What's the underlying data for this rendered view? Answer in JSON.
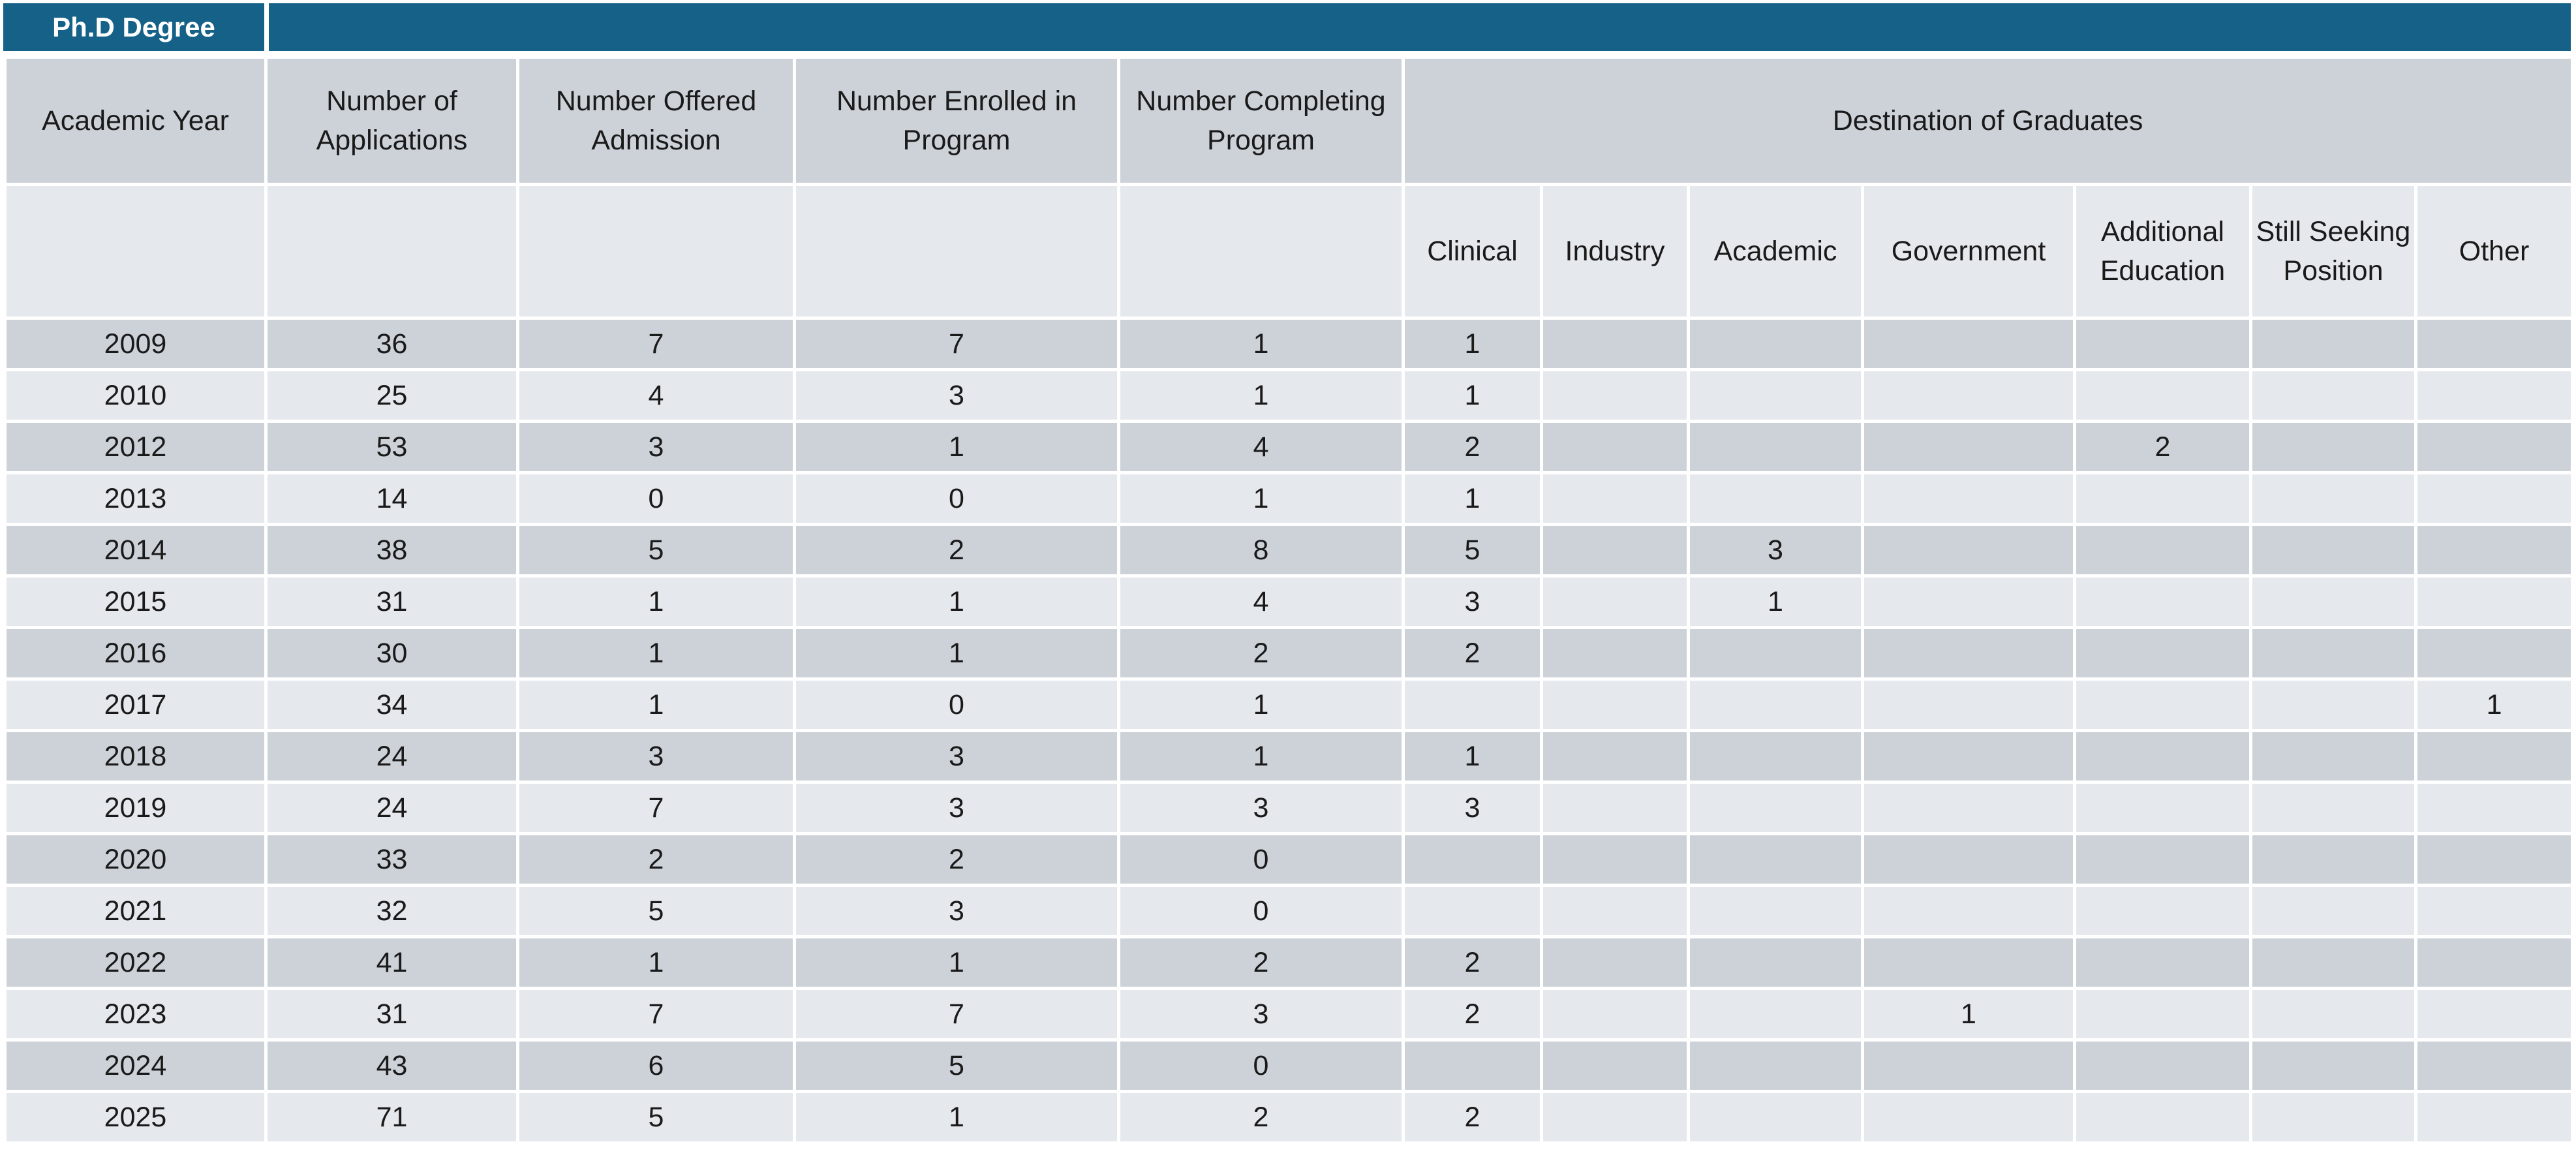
{
  "title": "Ph.D Degree",
  "headers": {
    "academic_year": "Academic Year",
    "applications": "Number of Applications",
    "offered": "Number Offered Admission",
    "enrolled": "Number Enrolled in Program",
    "completing": "Number Completing Program",
    "destination": "Destination of Graduates",
    "clinical": "Clinical",
    "industry": "Industry",
    "academic": "Academic",
    "government": "Government",
    "additional_education": "Additional Education",
    "still_seeking": "Still Seeking Position",
    "other": "Other"
  },
  "rows": [
    {
      "year": "2009",
      "applications": "36",
      "offered": "7",
      "enrolled": "7",
      "completing": "1",
      "clinical": "1",
      "industry": "",
      "academic": "",
      "government": "",
      "additional": "",
      "seeking": "",
      "other": ""
    },
    {
      "year": "2010",
      "applications": "25",
      "offered": "4",
      "enrolled": "3",
      "completing": "1",
      "clinical": "1",
      "industry": "",
      "academic": "",
      "government": "",
      "additional": "",
      "seeking": "",
      "other": ""
    },
    {
      "year": "2012",
      "applications": "53",
      "offered": "3",
      "enrolled": "1",
      "completing": "4",
      "clinical": "2",
      "industry": "",
      "academic": "",
      "government": "",
      "additional": "2",
      "seeking": "",
      "other": ""
    },
    {
      "year": "2013",
      "applications": "14",
      "offered": "0",
      "enrolled": "0",
      "completing": "1",
      "clinical": "1",
      "industry": "",
      "academic": "",
      "government": "",
      "additional": "",
      "seeking": "",
      "other": ""
    },
    {
      "year": "2014",
      "applications": "38",
      "offered": "5",
      "enrolled": "2",
      "completing": "8",
      "clinical": "5",
      "industry": "",
      "academic": "3",
      "government": "",
      "additional": "",
      "seeking": "",
      "other": ""
    },
    {
      "year": "2015",
      "applications": "31",
      "offered": "1",
      "enrolled": "1",
      "completing": "4",
      "clinical": "3",
      "industry": "",
      "academic": "1",
      "government": "",
      "additional": "",
      "seeking": "",
      "other": ""
    },
    {
      "year": "2016",
      "applications": "30",
      "offered": "1",
      "enrolled": "1",
      "completing": "2",
      "clinical": "2",
      "industry": "",
      "academic": "",
      "government": "",
      "additional": "",
      "seeking": "",
      "other": ""
    },
    {
      "year": "2017",
      "applications": "34",
      "offered": "1",
      "enrolled": "0",
      "completing": "1",
      "clinical": "",
      "industry": "",
      "academic": "",
      "government": "",
      "additional": "",
      "seeking": "",
      "other": "1"
    },
    {
      "year": "2018",
      "applications": "24",
      "offered": "3",
      "enrolled": "3",
      "completing": "1",
      "clinical": "1",
      "industry": "",
      "academic": "",
      "government": "",
      "additional": "",
      "seeking": "",
      "other": ""
    },
    {
      "year": "2019",
      "applications": "24",
      "offered": "7",
      "enrolled": "3",
      "completing": "3",
      "clinical": "3",
      "industry": "",
      "academic": "",
      "government": "",
      "additional": "",
      "seeking": "",
      "other": ""
    },
    {
      "year": "2020",
      "applications": "33",
      "offered": "2",
      "enrolled": "2",
      "completing": "0",
      "clinical": "",
      "industry": "",
      "academic": "",
      "government": "",
      "additional": "",
      "seeking": "",
      "other": ""
    },
    {
      "year": "2021",
      "applications": "32",
      "offered": "5",
      "enrolled": "3",
      "completing": "0",
      "clinical": "",
      "industry": "",
      "academic": "",
      "government": "",
      "additional": "",
      "seeking": "",
      "other": ""
    },
    {
      "year": "2022",
      "applications": "41",
      "offered": "1",
      "enrolled": "1",
      "completing": "2",
      "clinical": "2",
      "industry": "",
      "academic": "",
      "government": "",
      "additional": "",
      "seeking": "",
      "other": ""
    },
    {
      "year": "2023",
      "applications": "31",
      "offered": "7",
      "enrolled": "7",
      "completing": "3",
      "clinical": "2",
      "industry": "",
      "academic": "",
      "government": "1",
      "additional": "",
      "seeking": "",
      "other": ""
    },
    {
      "year": "2024",
      "applications": "43",
      "offered": "6",
      "enrolled": "5",
      "completing": "0",
      "clinical": "",
      "industry": "",
      "academic": "",
      "government": "",
      "additional": "",
      "seeking": "",
      "other": ""
    },
    {
      "year": "2025",
      "applications": "71",
      "offered": "5",
      "enrolled": "1",
      "completing": "2",
      "clinical": "2",
      "industry": "",
      "academic": "",
      "government": "",
      "additional": "",
      "seeking": "",
      "other": ""
    }
  ]
}
